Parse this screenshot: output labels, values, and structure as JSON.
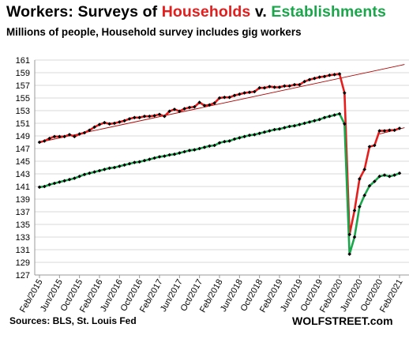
{
  "title": {
    "part1": "Workers: Surveys of ",
    "part2": "Households",
    "part3": " v. ",
    "part4": "Establishments"
  },
  "subtitle": "Millions of people, Household survey includes gig workers",
  "source": "Sources: BLS, St. Louis Fed",
  "brand": "WOLFSTREET.com",
  "colors": {
    "household": "#e41d1d",
    "establishment": "#1aa64a",
    "marker": "#000000",
    "trend": "#b00000",
    "grid": "#d9d9d9"
  },
  "chart_data": {
    "type": "line",
    "title": "Workers: Surveys of Households v. Establishments",
    "subtitle": "Millions of people, Household survey includes gig workers",
    "ylim": [
      127,
      161
    ],
    "yticks": [
      127,
      129,
      131,
      133,
      135,
      137,
      139,
      141,
      143,
      145,
      147,
      149,
      151,
      153,
      155,
      157,
      159,
      161
    ],
    "xlim": [
      "2015-02",
      "2021-03"
    ],
    "xticks": [
      "Feb/2015",
      "Jun/2015",
      "Oct/2015",
      "Feb/2016",
      "Jun/2016",
      "Oct/2016",
      "Feb/2017",
      "Jun/2017",
      "Oct/2017",
      "Feb/2018",
      "Jun/2018",
      "Oct/2018",
      "Feb/2019",
      "Jun/2019",
      "Oct/2019",
      "Feb/2020",
      "Jun/2020",
      "Oct/2020",
      "Feb/2021"
    ],
    "grid": true,
    "x": [
      "2015-02",
      "2015-03",
      "2015-04",
      "2015-05",
      "2015-06",
      "2015-07",
      "2015-08",
      "2015-09",
      "2015-10",
      "2015-11",
      "2015-12",
      "2016-01",
      "2016-02",
      "2016-03",
      "2016-04",
      "2016-05",
      "2016-06",
      "2016-07",
      "2016-08",
      "2016-09",
      "2016-10",
      "2016-11",
      "2016-12",
      "2017-01",
      "2017-02",
      "2017-03",
      "2017-04",
      "2017-05",
      "2017-06",
      "2017-07",
      "2017-08",
      "2017-09",
      "2017-10",
      "2017-11",
      "2017-12",
      "2018-01",
      "2018-02",
      "2018-03",
      "2018-04",
      "2018-05",
      "2018-06",
      "2018-07",
      "2018-08",
      "2018-09",
      "2018-10",
      "2018-11",
      "2018-12",
      "2019-01",
      "2019-02",
      "2019-03",
      "2019-04",
      "2019-05",
      "2019-06",
      "2019-07",
      "2019-08",
      "2019-09",
      "2019-10",
      "2019-11",
      "2019-12",
      "2020-01",
      "2020-02",
      "2020-03",
      "2020-04",
      "2020-05",
      "2020-06",
      "2020-07",
      "2020-08",
      "2020-09",
      "2020-10",
      "2020-11",
      "2020-12",
      "2021-01",
      "2021-02"
    ],
    "series": [
      {
        "name": "Households",
        "values": [
          148.0,
          148.2,
          148.6,
          148.9,
          148.9,
          148.9,
          149.2,
          148.9,
          149.3,
          149.5,
          149.9,
          150.4,
          150.8,
          151.1,
          150.9,
          151.0,
          151.2,
          151.4,
          151.7,
          151.9,
          151.9,
          152.1,
          152.1,
          152.2,
          152.4,
          152.1,
          152.9,
          153.2,
          152.9,
          153.3,
          153.5,
          153.6,
          154.3,
          153.8,
          153.9,
          154.2,
          155.0,
          155.1,
          155.1,
          155.4,
          155.6,
          155.8,
          155.9,
          156.0,
          156.6,
          156.6,
          156.8,
          156.7,
          156.7,
          156.9,
          156.9,
          157.1,
          157.1,
          157.6,
          157.9,
          158.1,
          158.3,
          158.4,
          158.6,
          158.7,
          158.8,
          155.8,
          133.4,
          137.2,
          142.2,
          143.7,
          147.3,
          147.5,
          149.8,
          149.8,
          149.9,
          149.9,
          150.2
        ]
      },
      {
        "name": "Establishments",
        "values": [
          140.9,
          141.0,
          141.3,
          141.5,
          141.7,
          141.9,
          142.1,
          142.3,
          142.6,
          142.9,
          143.1,
          143.3,
          143.5,
          143.7,
          143.9,
          144.0,
          144.2,
          144.4,
          144.6,
          144.8,
          144.9,
          145.1,
          145.3,
          145.5,
          145.7,
          145.8,
          146.0,
          146.1,
          146.3,
          146.5,
          146.7,
          146.8,
          147.0,
          147.2,
          147.4,
          147.5,
          147.9,
          148.1,
          148.2,
          148.5,
          148.7,
          148.9,
          149.1,
          149.2,
          149.4,
          149.6,
          149.8,
          150.0,
          150.1,
          150.3,
          150.5,
          150.6,
          150.8,
          151.0,
          151.2,
          151.4,
          151.6,
          151.9,
          152.1,
          152.3,
          152.5,
          150.9,
          130.3,
          133.0,
          137.8,
          139.6,
          141.1,
          141.8,
          142.6,
          142.8,
          142.6,
          142.8,
          143.1
        ]
      }
    ],
    "trendlines": [
      {
        "series": "Households",
        "from": {
          "x": "2015-02",
          "y": 148.0
        },
        "to": {
          "x": "2021-03",
          "y": 160.3
        }
      },
      {
        "series": "Households",
        "from": {
          "x": "2020-10",
          "y": 149.3
        },
        "to": {
          "x": "2021-03",
          "y": 150.3
        }
      }
    ]
  }
}
